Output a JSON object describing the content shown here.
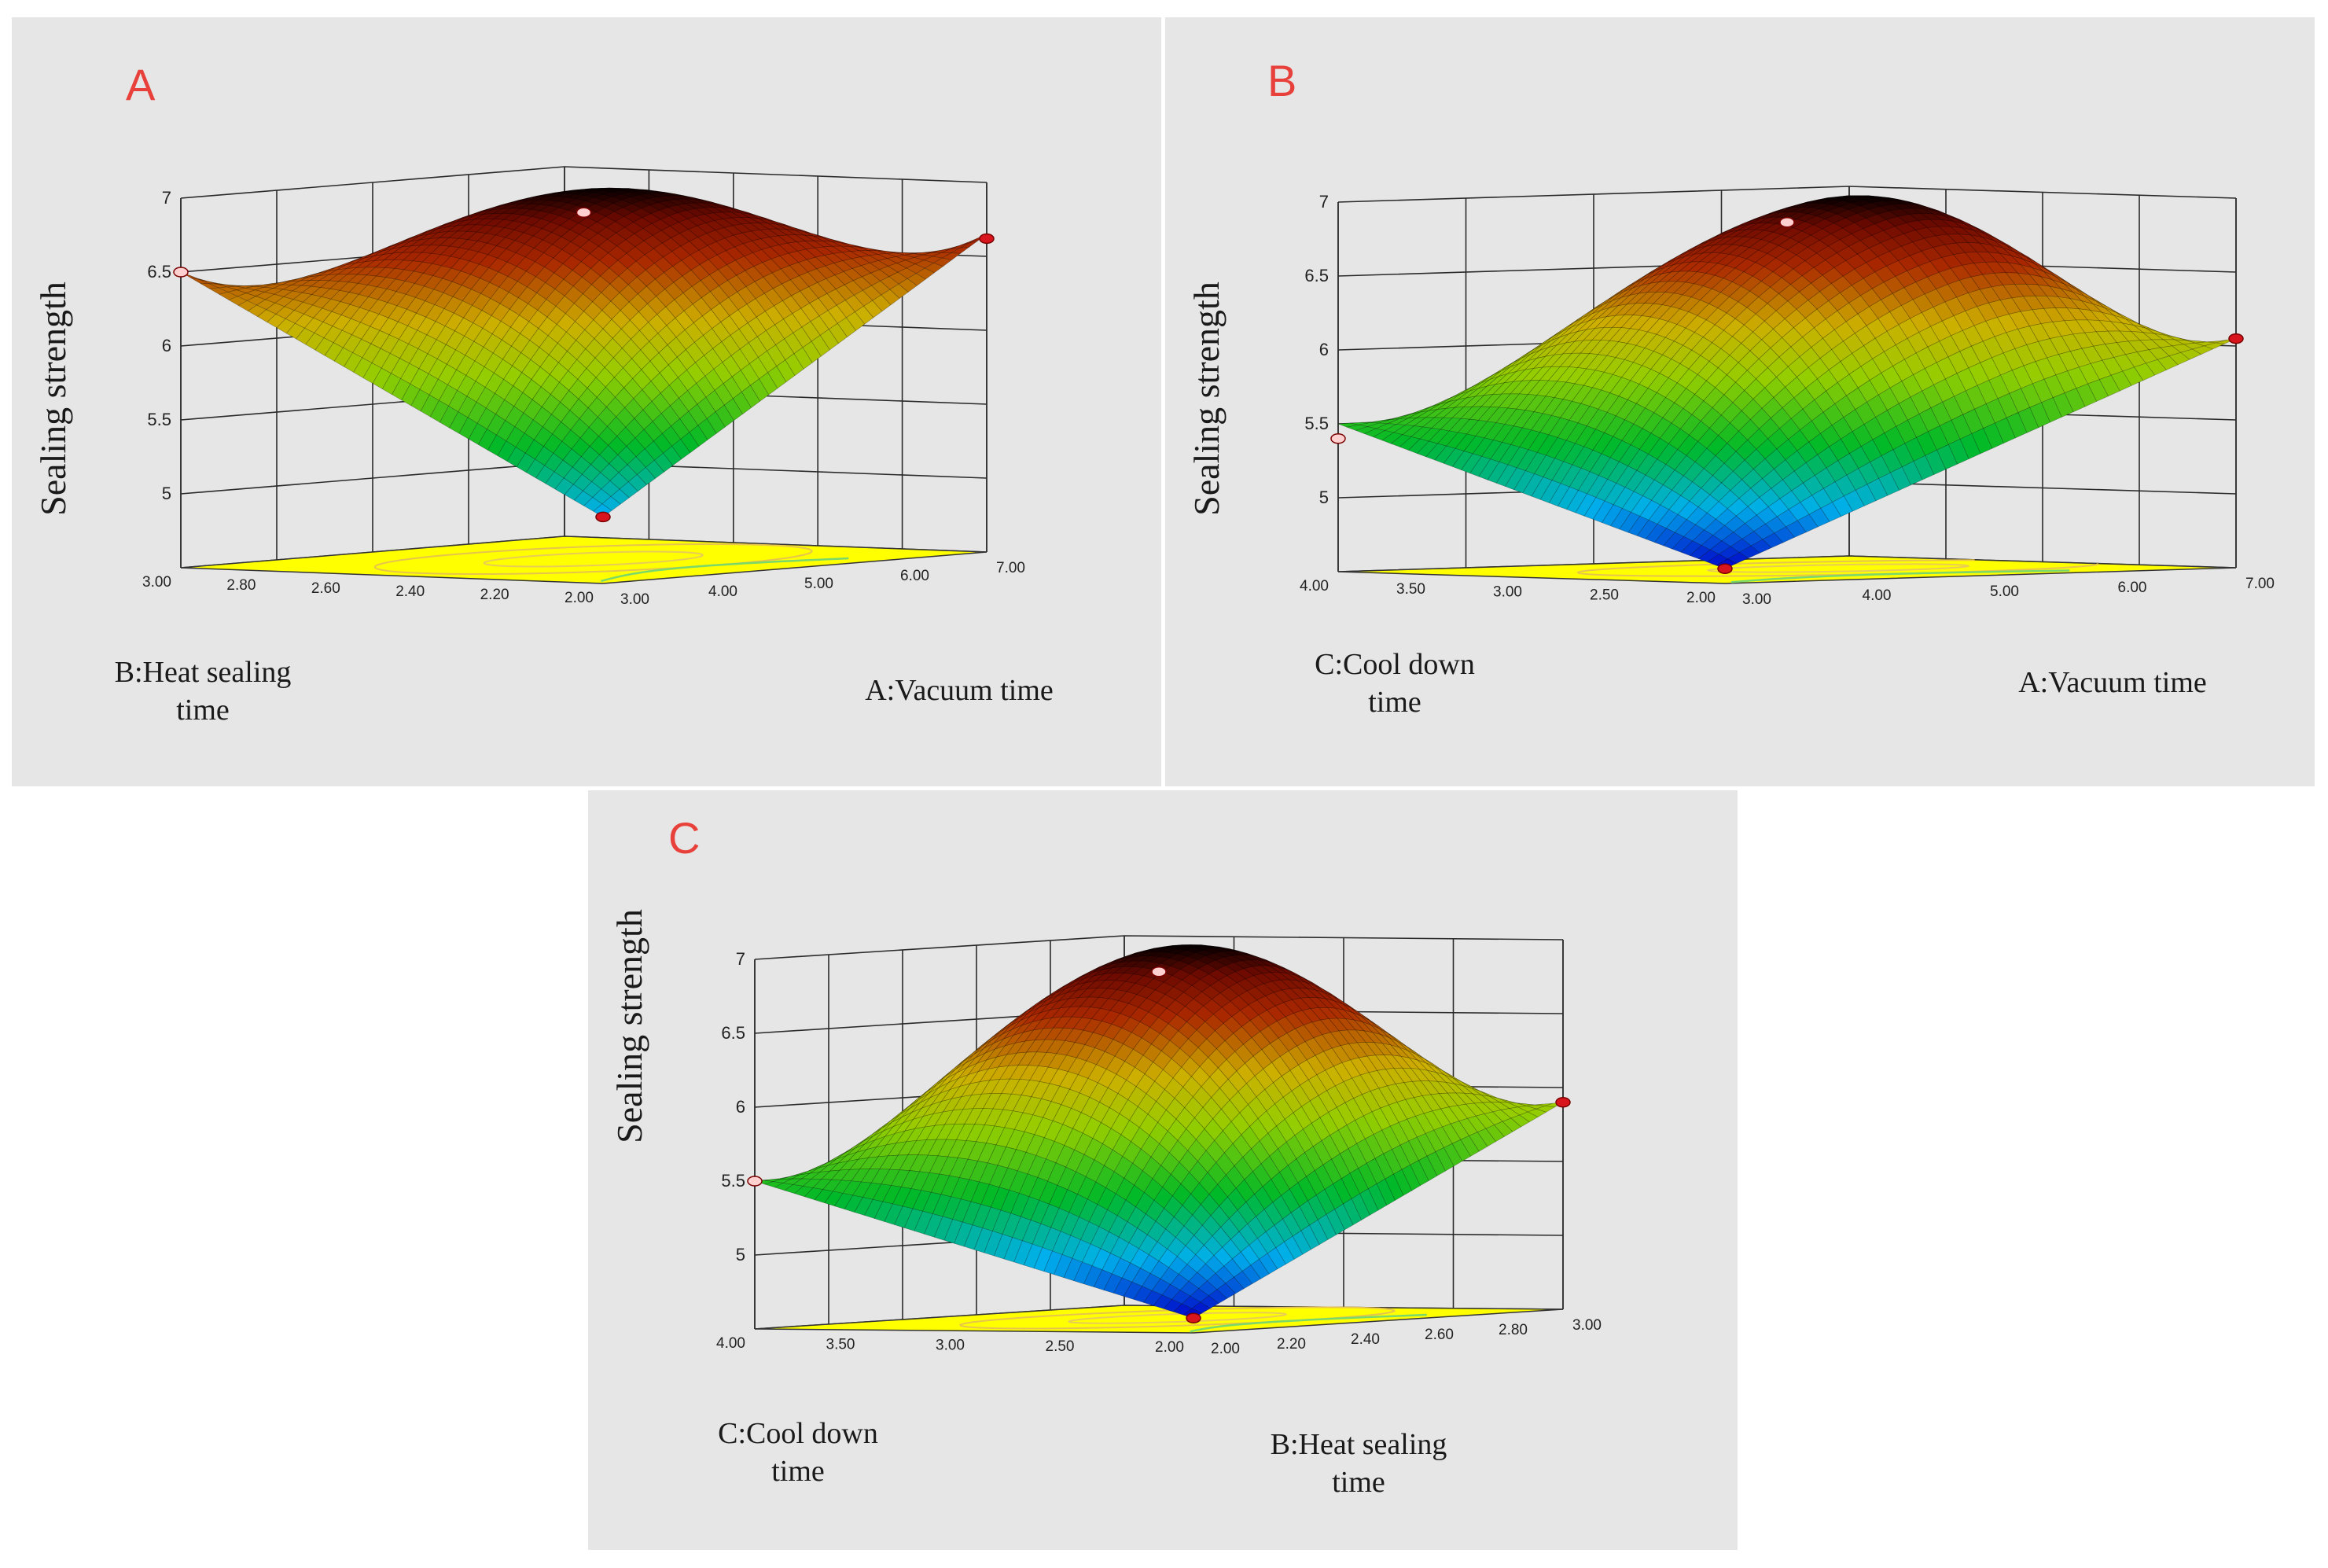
{
  "chart_data": [
    {
      "id": "A",
      "type": "surface3d",
      "title": "A",
      "zlabel": "Sealing strength",
      "x": {
        "label": "A:Vacuum time",
        "ticks": [
          "3.00",
          "4.00",
          "5.00",
          "6.00",
          "7.00"
        ],
        "range": [
          3,
          7
        ]
      },
      "y": {
        "label_lines": [
          "B:Heat sealing",
          "time"
        ],
        "ticks": [
          "2.00",
          "2.20",
          "2.40",
          "2.60",
          "2.80",
          "3.00"
        ],
        "range": [
          2,
          3
        ]
      },
      "z": {
        "ticks": [
          "5",
          "5.5",
          "6",
          "6.5",
          "7"
        ],
        "range": [
          4.5,
          7
        ]
      },
      "corner_values": {
        "x_low_y_low": 4.95,
        "x_high_y_low": 6.65,
        "x_low_y_high": 6.5,
        "x_high_y_high": 5.3
      },
      "peak": {
        "x": 5.1,
        "y": 2.5,
        "z": 7.0
      },
      "design_points": [
        {
          "x": 3,
          "y": 2,
          "z": 4.95
        },
        {
          "x": 3,
          "y": 3,
          "z": 6.5
        },
        {
          "x": 7,
          "y": 2,
          "z": 6.62
        },
        {
          "x": 5,
          "y": 2.5,
          "z": 6.85
        }
      ]
    },
    {
      "id": "B",
      "type": "surface3d",
      "title": "B",
      "zlabel": "Sealing strength",
      "x": {
        "label": "A:Vacuum time",
        "ticks": [
          "3.00",
          "4.00",
          "5.00",
          "6.00",
          "7.00"
        ],
        "range": [
          3,
          7
        ]
      },
      "y": {
        "label_lines": [
          "C:Cool down",
          "time"
        ],
        "ticks": [
          "2.00",
          "2.50",
          "3.00",
          "3.50",
          "4.00"
        ],
        "range": [
          2,
          4
        ]
      },
      "z": {
        "ticks": [
          "5",
          "5.5",
          "6",
          "6.5",
          "7"
        ],
        "range": [
          4.5,
          7
        ]
      },
      "corner_values": {
        "x_low_y_low": 4.6,
        "x_high_y_low": 6.05,
        "x_low_y_high": 5.5,
        "x_high_y_high": 5.6
      },
      "peak": {
        "x": 5.4,
        "y": 3.0,
        "z": 7.0
      },
      "design_points": [
        {
          "x": 3,
          "y": 2,
          "z": 4.6
        },
        {
          "x": 3,
          "y": 4,
          "z": 5.4
        },
        {
          "x": 7,
          "y": 2,
          "z": 6.05
        },
        {
          "x": 5,
          "y": 3,
          "z": 6.85
        }
      ]
    },
    {
      "id": "C",
      "type": "surface3d",
      "title": "C",
      "zlabel": "Sealing strength",
      "x": {
        "label_lines": [
          "B:Heat sealing",
          "time"
        ],
        "ticks": [
          "2.00",
          "2.20",
          "2.40",
          "2.60",
          "2.80",
          "3.00"
        ],
        "range": [
          2,
          3
        ]
      },
      "y": {
        "label_lines": [
          "C:Cool down",
          "time"
        ],
        "ticks": [
          "2.00",
          "2.50",
          "3.00",
          "3.50",
          "4.00"
        ],
        "range": [
          2,
          4
        ]
      },
      "z": {
        "ticks": [
          "5",
          "5.5",
          "6",
          "6.5",
          "7"
        ],
        "range": [
          4.5,
          7
        ]
      },
      "corner_values": {
        "x_low_y_low": 4.6,
        "x_high_y_low": 5.9,
        "x_low_y_high": 5.5,
        "x_high_y_high": 5.6
      },
      "peak": {
        "x": 2.55,
        "y": 3.0,
        "z": 7.0
      },
      "design_points": [
        {
          "x": 2,
          "y": 2,
          "z": 4.6
        },
        {
          "x": 2,
          "y": 4,
          "z": 5.5
        },
        {
          "x": 3,
          "y": 2,
          "z": 5.9
        },
        {
          "x": 2.5,
          "y": 3,
          "z": 6.85
        }
      ]
    }
  ],
  "colors": {
    "panel_bg": "#e6e6e6",
    "floor": "#ffff00",
    "contour": "#7ad86a",
    "grid": "#2a2a2a",
    "letter": "#e8403a",
    "point": "#d8141c"
  }
}
